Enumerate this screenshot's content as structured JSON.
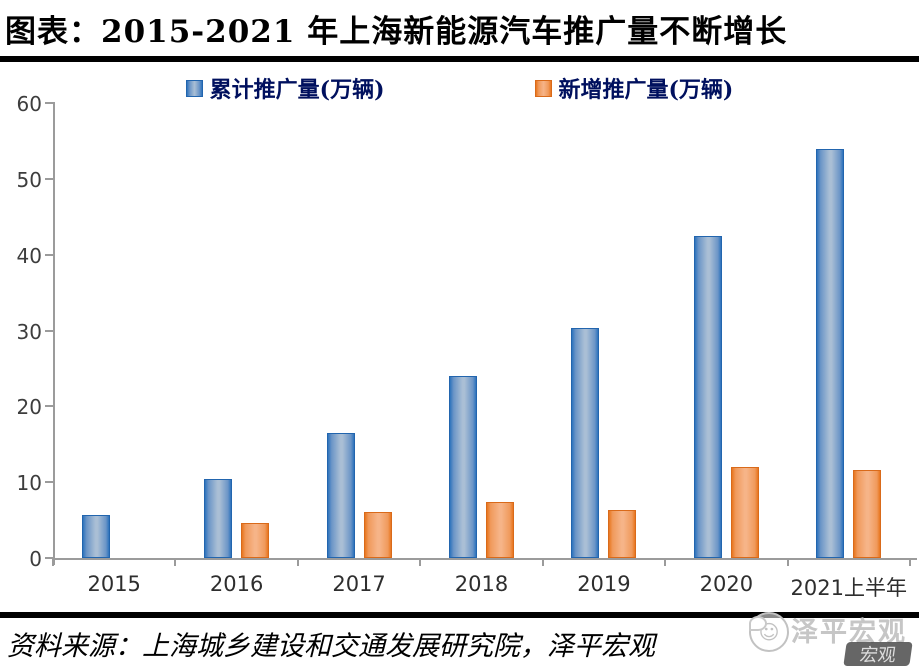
{
  "title": "图表：2015-2021 年上海新能源汽车推广量不断增长",
  "footer": {
    "source_label": "资料来源：上海城乡建设和交通发展研究院，泽平宏观"
  },
  "watermark": {
    "brand": "泽平宏观",
    "badge": "宏观",
    "icon": "chat-face-logo"
  },
  "colors": {
    "bar_blue": "#2e74bd",
    "bar_orange": "#ed7d31",
    "legend_text": "#00105e",
    "axis": "#9b9b9b",
    "rule": "#000000",
    "watermark_gray": "#c6c6c6"
  },
  "chart_data": {
    "type": "bar",
    "categories": [
      "2015",
      "2016",
      "2017",
      "2018",
      "2019",
      "2020",
      "2021上半年"
    ],
    "series": [
      {
        "name": "累计推广量(万辆)",
        "color": "#2e74bd",
        "values": [
          5.7,
          10.4,
          16.5,
          24.0,
          30.3,
          42.4,
          54.0
        ]
      },
      {
        "name": "新增推广量(万辆)",
        "color": "#ed7d31",
        "values": [
          null,
          4.6,
          6.1,
          7.4,
          6.3,
          12.0,
          11.6
        ]
      }
    ],
    "title": "2015-2021 年上海新能源汽车推广量不断增长",
    "xlabel": "",
    "ylabel": "",
    "ylim": [
      0,
      60
    ],
    "yticks": [
      0,
      10,
      20,
      30,
      40,
      50,
      60
    ],
    "grid": false,
    "legend_position": "top"
  }
}
